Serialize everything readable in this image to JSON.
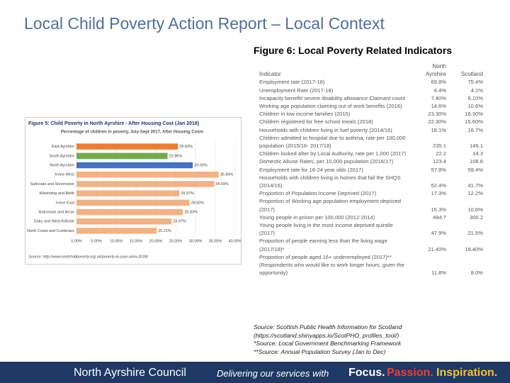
{
  "header": {
    "title": "Local Child Poverty Action Report – Local Context"
  },
  "figure6": {
    "title": "Figure 6: Local Poverty Related Indicators",
    "columns": [
      "Indicator",
      "North Ayrshire",
      "Scotland"
    ],
    "rows": [
      [
        "Employment rate (2017-18)",
        "69.8%",
        "75.4%"
      ],
      [
        "Unemployment Rate (2017-18)",
        "6.4%",
        "4.1%"
      ],
      [
        "Incapacity benefit/ severe disability allowance Claimant count",
        "7.40%",
        "6.10%"
      ],
      [
        "Working age population claiming out of work benefits (2016)",
        "14.6%",
        "10.6%"
      ],
      [
        "Children in low income families (2015)",
        "23.30%",
        "16.30%"
      ],
      [
        "Children registered for free school meals (2018)",
        "22.30%",
        "15.60%"
      ],
      [
        "Households with children living in fuel poverty (2014/16)",
        "18.1%",
        "16.7%"
      ],
      [
        "Children admitted to hospital due to asthma, rate per 100,000 population (2015/16- 2017/18)",
        "235.1",
        "145.1"
      ],
      [
        "Children looked after by Local Authority, rate per 1,000 (2017)",
        "22.2",
        "14.3"
      ],
      [
        "Domestic Abuse Rates, per 10,000 population (2016/17)",
        "123.4",
        "108.8"
      ],
      [
        "Employment rate for 16-24 year olds (2017)",
        "57.8%",
        "59.4%"
      ],
      [
        "Households with children living in homes that fail the SHQS (2014/16)",
        "52.4%",
        "41.7%"
      ],
      [
        "Proportion of Population Income Deprived (2017)",
        "17.3%",
        "12.2%"
      ],
      [
        "Proportion of Working age population employment deprived (2017)",
        "15.3%",
        "10.6%"
      ],
      [
        "Young people in prison per 100,000 (2012-2014)",
        "484.7",
        "300.2"
      ],
      [
        "Young people living in the most income deprived quintile (2017)",
        "47.9%",
        "21.5%"
      ],
      [
        "Proportion of people earning less than the living wage (2017/18)*",
        "21.40%",
        "18.40%"
      ],
      [
        "Proportion of people aged 16+ underemployed (2017)** (Respondents who would like to work longer hours, given the opportunity)",
        "11.8%",
        "8.0%"
      ]
    ],
    "sources": [
      "Source: Scottish Public Health Information for Scotland",
      "(https://scotland.shinyapps.io/ScotPHO_profiles_tool/)",
      "*Source: Local Government Benchmarking Framework",
      "**Source: Annual Population Survey (Jan to Dec)"
    ]
  },
  "chart_data": {
    "type": "hbar",
    "title": "Figure 5: Child Poverty in North Ayrshire - After Housing Cost (Jan 2018)",
    "subtitle": "Percentage of children in poverty, July-Sept 2017, After Housing Costs",
    "categories": [
      "East Ayrshire",
      "South Ayrshire",
      "North Ayrshire",
      "Irvine West",
      "Saltcoats and Stevenston",
      "Kilwinning and Beith",
      "Irvine East",
      "Ardrossan and Arran",
      "Dalry and West Kilbride",
      "North Coast and Cumbraes"
    ],
    "values": [
      25.6,
      22.96,
      29.3,
      35.84,
      34.69,
      25.97,
      28.5,
      26.83,
      23.97,
      20.21
    ],
    "value_labels": [
      "25.60%",
      "22.96%",
      "29.30%",
      "35.84%",
      "34.69%",
      "25.97%",
      "28.50%",
      "26.83%",
      "23.97%",
      "20.21%"
    ],
    "colors": [
      "#ed7d31",
      "#70ad47",
      "#4472c4",
      "#f4b183",
      "#f4b183",
      "#f4b183",
      "#f4b183",
      "#f4b183",
      "#f4b183",
      "#f4b183"
    ],
    "xlim": [
      0,
      40
    ],
    "xticks": [
      {
        "value": 0,
        "label": "0.00%"
      },
      {
        "value": 5,
        "label": "5.00%"
      },
      {
        "value": 10,
        "label": "10.00%"
      },
      {
        "value": 15,
        "label": "15.00%"
      },
      {
        "value": 20,
        "label": "20.00%"
      },
      {
        "value": 25,
        "label": "25.00%"
      },
      {
        "value": 30,
        "label": "30.00%"
      },
      {
        "value": 35,
        "label": "35.00%"
      },
      {
        "value": 40,
        "label": "40.00%"
      }
    ],
    "grid": true,
    "source": "Source: http://www.endchildpoverty.org.uk/poverty-in-your-area-2018/"
  },
  "footer": {
    "org": "North Ayrshire Council",
    "tagline": "Delivering our services with",
    "focus": "Focus.",
    "passion": "Passion.",
    "inspiration": "Inspiration."
  }
}
